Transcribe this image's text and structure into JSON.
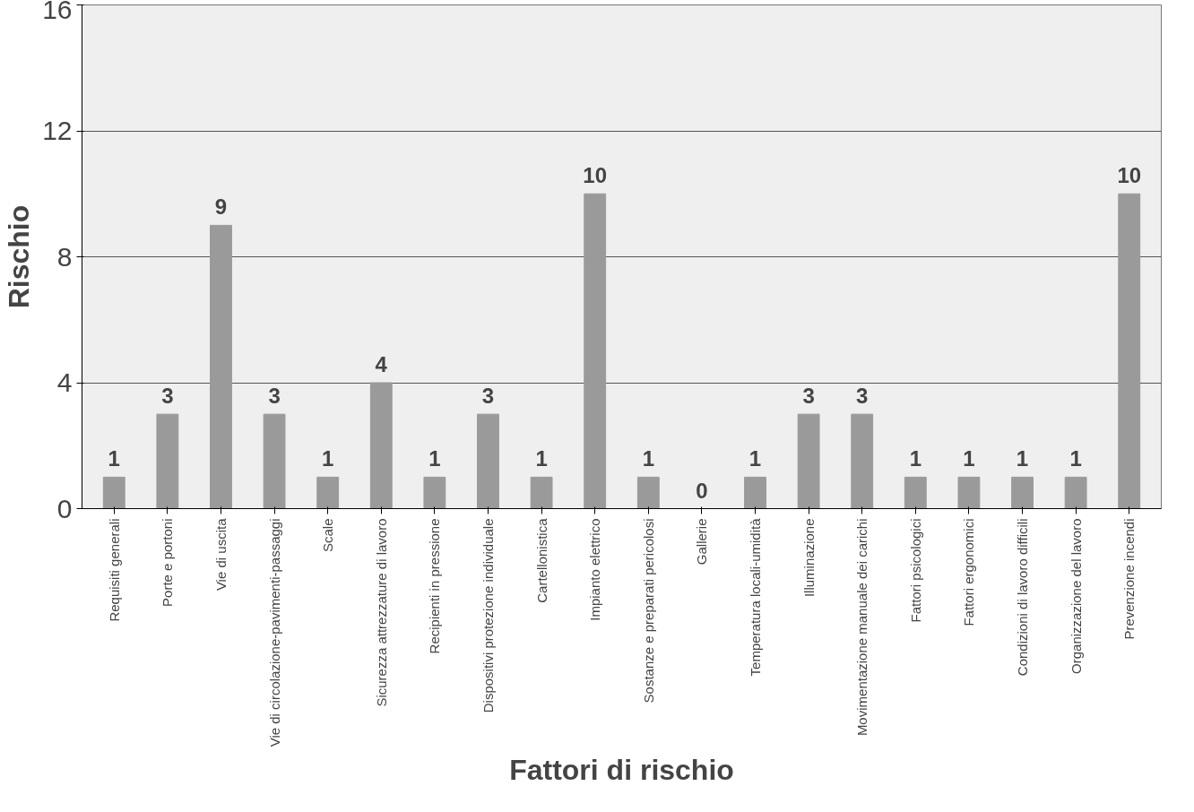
{
  "chart_data": {
    "type": "bar",
    "xlabel": "Fattori di rischio",
    "ylabel": "Rischio",
    "categories": [
      "Requisiti generali",
      "Porte e portoni",
      "Vie di uscita",
      "Vie di circolazione-pavimenti-passaggi",
      "Scale",
      "Sicurezza attrezzature di lavoro",
      "Recipienti in pressione",
      "Dispositivi protezione individuale",
      "Cartellonistica",
      "Impianto elettrico",
      "Sostanze e preparati pericolosi",
      "Gallerie",
      "Temperatura locali-umidità",
      "Illuminazione",
      "Movimentazione manuale dei carichi",
      "Fattori psicologici",
      "Fattori ergonomici",
      "Condizioni di lavoro difficili",
      "Organizzazione del lavoro",
      "Prevenzione incendi"
    ],
    "values": [
      1,
      3,
      9,
      3,
      1,
      4,
      1,
      3,
      1,
      10,
      1,
      0,
      1,
      3,
      3,
      1,
      1,
      1,
      1,
      10
    ],
    "color": "#9a9a9a",
    "ylim": [
      0,
      16
    ],
    "yticks": [
      0,
      4,
      8,
      12,
      16
    ],
    "grid": "y",
    "data_labels": true
  }
}
